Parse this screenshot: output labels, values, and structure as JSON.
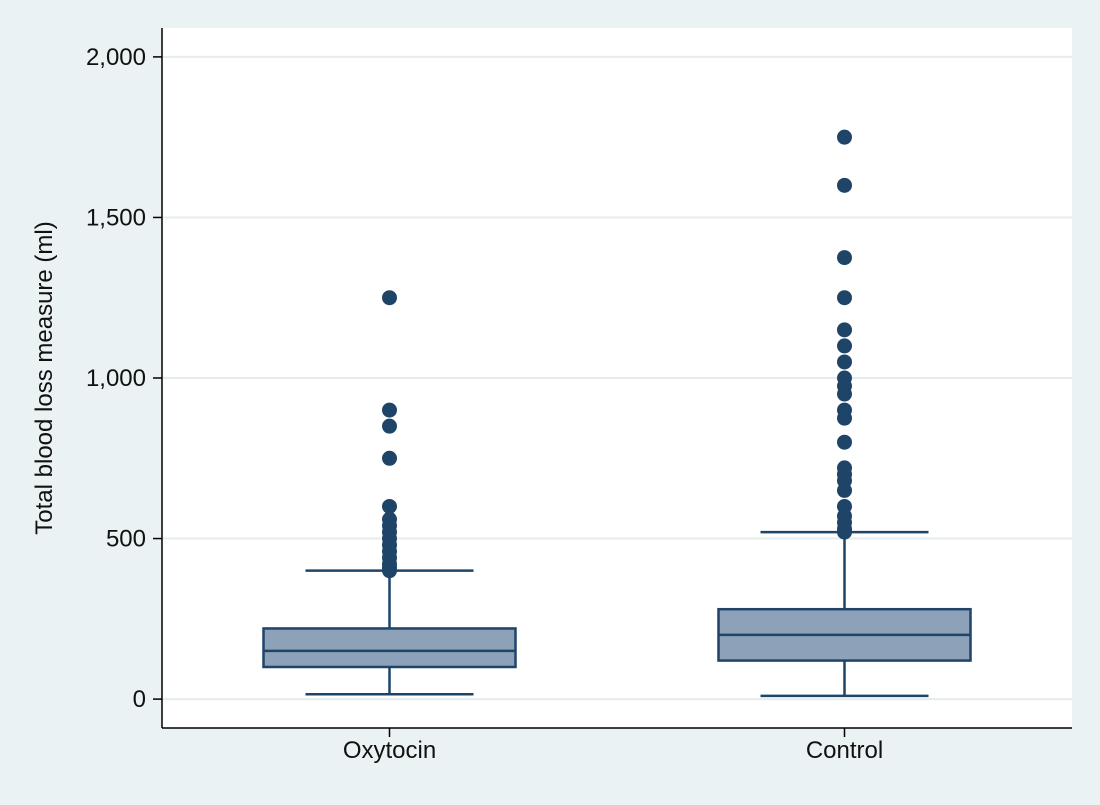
{
  "chart_data": {
    "type": "box",
    "title": "",
    "xlabel": "",
    "ylabel": "Total blood loss measure (ml)",
    "ylim": [
      -90,
      2090
    ],
    "yticks": [
      0,
      500,
      1000,
      1500,
      2000
    ],
    "ytick_labels": [
      "0",
      "500",
      "1,000",
      "1,500",
      "2,000"
    ],
    "grid": true,
    "legend": "none",
    "categories": [
      "Oxytocin",
      "Control"
    ],
    "series": [
      {
        "category": "Oxytocin",
        "whisker_low": 15,
        "q1": 100,
        "median": 150,
        "q3": 220,
        "whisker_high": 400,
        "outliers": [
          400,
          410,
          420,
          440,
          460,
          480,
          500,
          520,
          540,
          560,
          600,
          750,
          850,
          900,
          1250
        ]
      },
      {
        "category": "Control",
        "whisker_low": 10,
        "q1": 120,
        "median": 200,
        "q3": 280,
        "whisker_high": 520,
        "outliers": [
          520,
          530,
          550,
          570,
          600,
          650,
          680,
          700,
          720,
          800,
          875,
          900,
          950,
          975,
          1000,
          1050,
          1100,
          1150,
          1250,
          1375,
          1600,
          1750
        ]
      }
    ],
    "colors": {
      "box_fill": "#8da2b8",
      "box_stroke": "#1e4468",
      "outlier": "#1e4468",
      "grid": "#e6ebeb",
      "plot_bg": "#ffffff",
      "page_bg": "#eaf2f3"
    }
  }
}
